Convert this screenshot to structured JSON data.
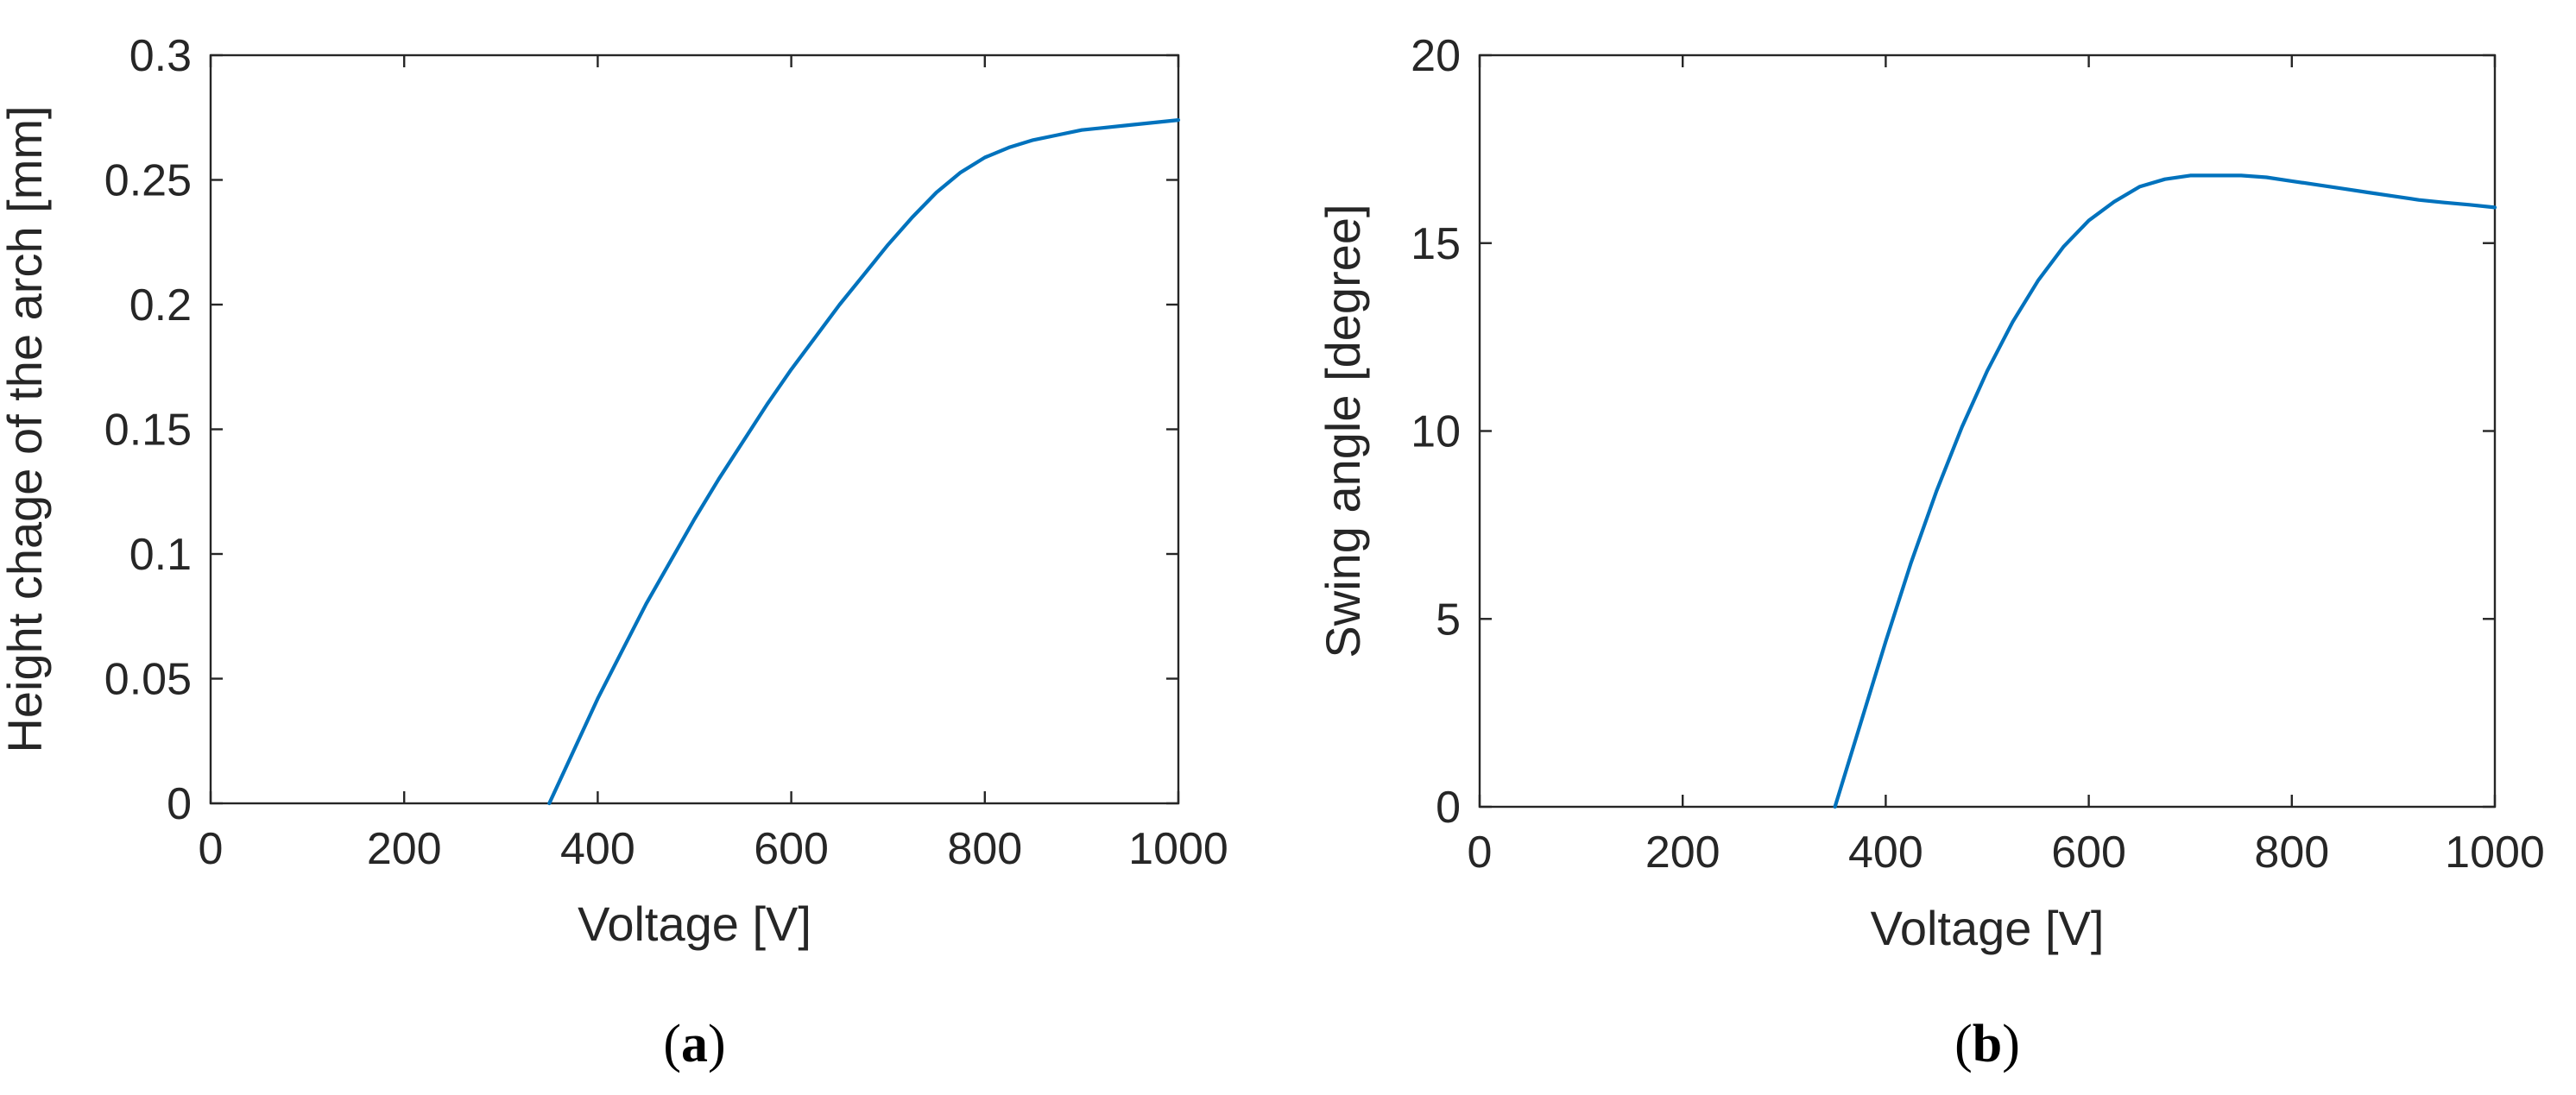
{
  "colors": {
    "series": "#0072BD",
    "axes": "#262626",
    "background": "#ffffff"
  },
  "chart_data": [
    {
      "type": "line",
      "caption": "a",
      "xlabel": "Voltage [V]",
      "ylabel": "Height chage of the arch [mm]",
      "xlim": [
        0,
        1000
      ],
      "ylim": [
        0,
        0.3
      ],
      "xticks": [
        0,
        200,
        400,
        600,
        800,
        1000
      ],
      "xtick_labels": [
        "0",
        "200",
        "400",
        "600",
        "800",
        "1000"
      ],
      "yticks": [
        0,
        0.05,
        0.1,
        0.15,
        0.2,
        0.25,
        0.3
      ],
      "ytick_labels": [
        "0",
        "0.05",
        "0.1",
        "0.15",
        "0.2",
        "0.25",
        "0.3"
      ],
      "grid": false,
      "series": [
        {
          "x": [
            350,
            375,
            400,
            425,
            450,
            475,
            500,
            525,
            550,
            575,
            600,
            625,
            650,
            675,
            700,
            725,
            750,
            775,
            800,
            825,
            850,
            875,
            900,
            925,
            950,
            975,
            1000
          ],
          "y": [
            0,
            0.021,
            0.042,
            0.061,
            0.08,
            0.097,
            0.114,
            0.13,
            0.145,
            0.16,
            0.174,
            0.187,
            0.2,
            0.212,
            0.224,
            0.235,
            0.245,
            0.253,
            0.259,
            0.263,
            0.266,
            0.268,
            0.27,
            0.271,
            0.272,
            0.273,
            0.274
          ]
        }
      ]
    },
    {
      "type": "line",
      "caption": "b",
      "xlabel": "Voltage [V]",
      "ylabel": "Swing angle [degree]",
      "xlim": [
        0,
        1000
      ],
      "ylim": [
        0,
        20
      ],
      "xticks": [
        0,
        200,
        400,
        600,
        800,
        1000
      ],
      "xtick_labels": [
        "0",
        "200",
        "400",
        "600",
        "800",
        "1000"
      ],
      "yticks": [
        0,
        5,
        10,
        15,
        20
      ],
      "ytick_labels": [
        "0",
        "5",
        "10",
        "15",
        "20"
      ],
      "grid": false,
      "series": [
        {
          "x": [
            350,
            375,
            400,
            425,
            450,
            475,
            500,
            525,
            550,
            575,
            600,
            625,
            650,
            675,
            700,
            725,
            750,
            775,
            800,
            825,
            850,
            875,
            900,
            925,
            950,
            975,
            1000
          ],
          "y": [
            0,
            2.2,
            4.4,
            6.5,
            8.4,
            10.1,
            11.6,
            12.9,
            14.0,
            14.9,
            15.6,
            16.1,
            16.5,
            16.7,
            16.8,
            16.8,
            16.8,
            16.75,
            16.65,
            16.55,
            16.45,
            16.35,
            16.25,
            16.15,
            16.08,
            16.02,
            15.95
          ]
        }
      ]
    }
  ]
}
